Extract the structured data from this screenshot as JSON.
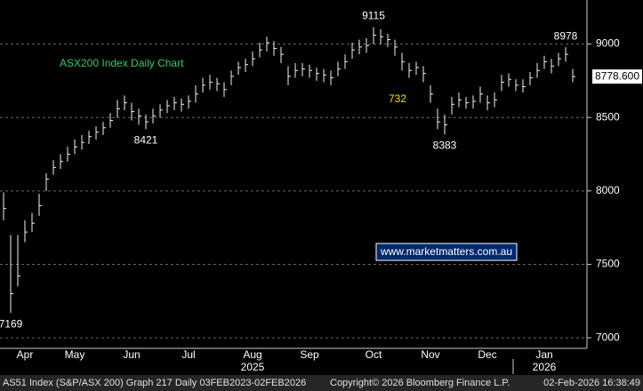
{
  "chart_data": {
    "type": "hlc",
    "title": "ASX200 Index Daily Chart",
    "annotation": "732",
    "watermark": "www.marketmatters.com.au",
    "footer": [
      "AS51 Index (S&P/ASX 200) Graph 217 Daily 03FEB2023-02FEB2026",
      "Copyright© 2026 Bloomberg Finance L.P.",
      "02-Feb-2026 16:38:49"
    ],
    "categories": [
      null,
      null,
      null,
      "Apr",
      null,
      null,
      null,
      null,
      null,
      null,
      "May",
      null,
      null,
      null,
      null,
      null,
      null,
      null,
      "Jun",
      null,
      null,
      null,
      null,
      null,
      null,
      null,
      "Jul",
      null,
      null,
      null,
      null,
      null,
      null,
      null,
      null,
      "Aug",
      null,
      null,
      null,
      null,
      null,
      null,
      null,
      "Sep",
      null,
      null,
      null,
      null,
      null,
      null,
      null,
      null,
      "Oct",
      null,
      null,
      null,
      null,
      null,
      null,
      null,
      "Nov",
      null,
      null,
      null,
      null,
      null,
      null,
      null,
      "Dec",
      null,
      null,
      null,
      null,
      null,
      null,
      null,
      "Jan",
      null,
      null,
      null,
      null
    ],
    "year_labels": [
      {
        "label": "2025",
        "index": 35
      },
      {
        "label": "2026",
        "index": 76
      }
    ],
    "high": [
      7990,
      7700,
      7700,
      7800,
      7850,
      7980,
      8120,
      8210,
      8250,
      8300,
      8350,
      8380,
      8410,
      8440,
      8470,
      8530,
      8620,
      8650,
      8600,
      8560,
      8520,
      8560,
      8590,
      8620,
      8640,
      8630,
      8650,
      8720,
      8770,
      8790,
      8770,
      8740,
      8820,
      8880,
      8900,
      8950,
      9010,
      9050,
      9020,
      8980,
      8850,
      8870,
      8870,
      8860,
      8840,
      8830,
      8820,
      8880,
      8930,
      9010,
      9030,
      9040,
      9115,
      9100,
      9070,
      9030,
      8940,
      8870,
      8880,
      8850,
      8720,
      8560,
      8520,
      8640,
      8670,
      8640,
      8650,
      8710,
      8650,
      8670,
      8790,
      8800,
      8760,
      8760,
      8810,
      8870,
      8920,
      8900,
      8940,
      8978,
      8830
    ],
    "low": [
      7800,
      7169,
      7350,
      7650,
      7720,
      7830,
      8000,
      8110,
      8150,
      8200,
      8250,
      8280,
      8320,
      8350,
      8380,
      8430,
      8500,
      8550,
      8480,
      8450,
      8421,
      8460,
      8500,
      8530,
      8550,
      8540,
      8560,
      8600,
      8670,
      8690,
      8680,
      8640,
      8720,
      8790,
      8810,
      8850,
      8910,
      8950,
      8920,
      8870,
      8720,
      8770,
      8780,
      8770,
      8750,
      8740,
      8720,
      8780,
      8830,
      8900,
      8930,
      8940,
      9000,
      9000,
      8980,
      8920,
      8820,
      8770,
      8790,
      8740,
      8600,
      8420,
      8383,
      8520,
      8570,
      8560,
      8560,
      8600,
      8550,
      8570,
      8680,
      8710,
      8680,
      8670,
      8720,
      8770,
      8830,
      8800,
      8850,
      8880,
      8740
    ],
    "close": [
      7880,
      7300,
      7420,
      7720,
      7780,
      7900,
      8080,
      8160,
      8200,
      8250,
      8300,
      8330,
      8370,
      8400,
      8430,
      8480,
      8560,
      8600,
      8540,
      8510,
      8470,
      8510,
      8550,
      8580,
      8600,
      8590,
      8610,
      8660,
      8720,
      8740,
      8730,
      8690,
      8780,
      8840,
      8860,
      8900,
      8960,
      9010,
      8970,
      8930,
      8780,
      8820,
      8830,
      8820,
      8800,
      8790,
      8770,
      8830,
      8880,
      8960,
      8980,
      8990,
      9060,
      9050,
      9030,
      8980,
      8880,
      8820,
      8840,
      8800,
      8660,
      8470,
      8450,
      8590,
      8620,
      8600,
      8610,
      8660,
      8600,
      8620,
      8740,
      8760,
      8720,
      8710,
      8770,
      8820,
      8880,
      8850,
      8900,
      8930,
      8778.6
    ],
    "extreme_labels": [
      {
        "label": "9115",
        "index": 52
      },
      {
        "label": "8978",
        "index": 79
      },
      {
        "label": "8421",
        "index": 20
      },
      {
        "label": "8383",
        "index": 62
      },
      {
        "label": "7169",
        "index": 1
      }
    ],
    "last_price": {
      "value": 8778.6,
      "label": "8778.600"
    },
    "color": "#f2f2f2",
    "ylim": [
      6940,
      9300
    ],
    "yticks": [
      7000,
      7500,
      8000,
      8500,
      9000
    ],
    "grid": true
  }
}
